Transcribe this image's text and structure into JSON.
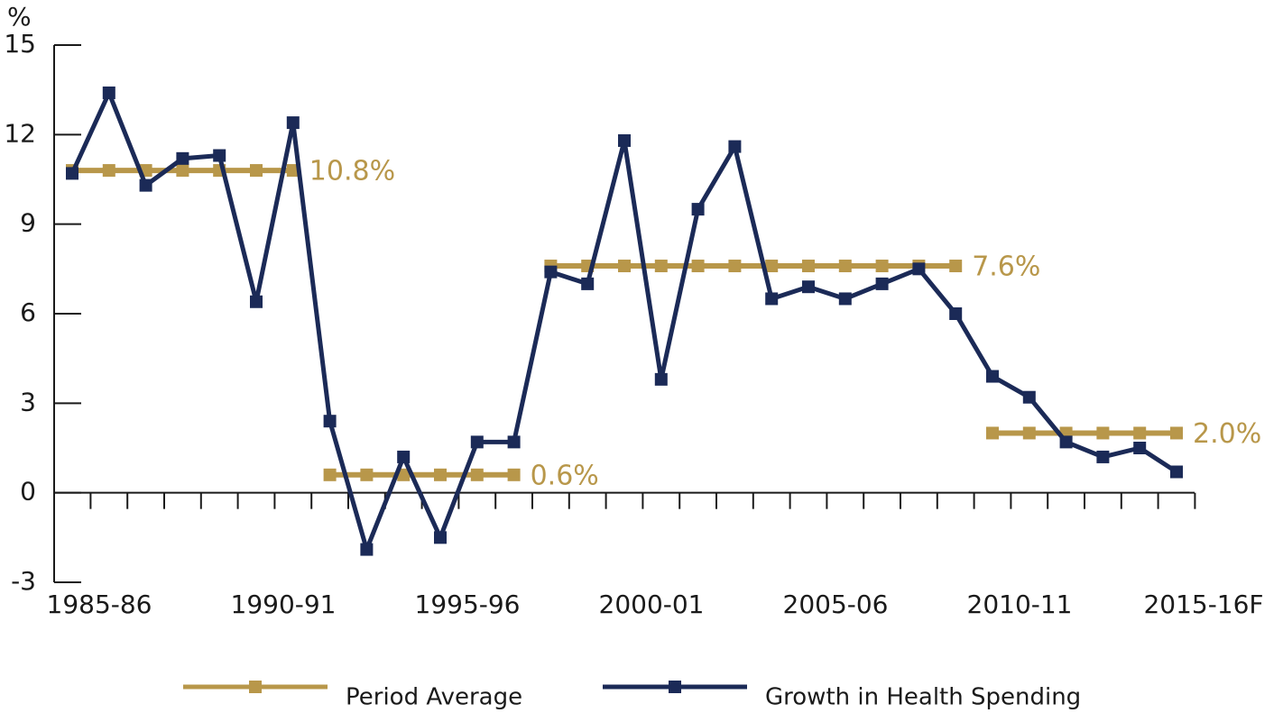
{
  "chart_data": {
    "type": "line",
    "y_label": "%",
    "categories": [
      "1985-86",
      null,
      null,
      null,
      null,
      "1990-91",
      null,
      null,
      null,
      null,
      "1995-96",
      null,
      null,
      null,
      null,
      "2000-01",
      null,
      null,
      null,
      null,
      "2005-06",
      null,
      null,
      null,
      null,
      "2010-11",
      null,
      null,
      null,
      null,
      "2015-16F"
    ],
    "series": [
      {
        "name": "Period Average",
        "color": "#b8974a",
        "values": [
          10.8,
          10.8,
          10.8,
          10.8,
          10.8,
          10.8,
          10.8,
          0.6,
          0.6,
          0.6,
          0.6,
          0.6,
          0.6,
          7.6,
          7.6,
          7.6,
          7.6,
          7.6,
          7.6,
          7.6,
          7.6,
          7.6,
          7.6,
          7.6,
          7.6,
          2.0,
          2.0,
          2.0,
          2.0,
          2.0,
          2.0
        ],
        "value_labels": [
          null,
          null,
          null,
          null,
          null,
          null,
          "10.8%",
          null,
          null,
          null,
          null,
          null,
          "0.6%",
          null,
          null,
          null,
          null,
          null,
          null,
          null,
          null,
          null,
          null,
          null,
          "7.6%",
          null,
          null,
          null,
          null,
          null,
          "2.0%"
        ]
      },
      {
        "name": "Growth in Health Spending",
        "color": "#1b2a57",
        "values": [
          10.7,
          13.4,
          10.3,
          11.2,
          11.3,
          6.4,
          12.4,
          2.4,
          -1.9,
          1.2,
          -1.5,
          1.7,
          1.7,
          7.4,
          7.0,
          11.8,
          3.8,
          9.5,
          11.6,
          6.5,
          6.9,
          6.5,
          7.0,
          7.5,
          6.0,
          3.9,
          3.2,
          1.7,
          1.2,
          1.5,
          0.7
        ]
      }
    ],
    "ylim": [
      -3,
      15
    ],
    "yticks": [
      -3,
      0,
      3,
      6,
      9,
      12,
      15
    ]
  }
}
